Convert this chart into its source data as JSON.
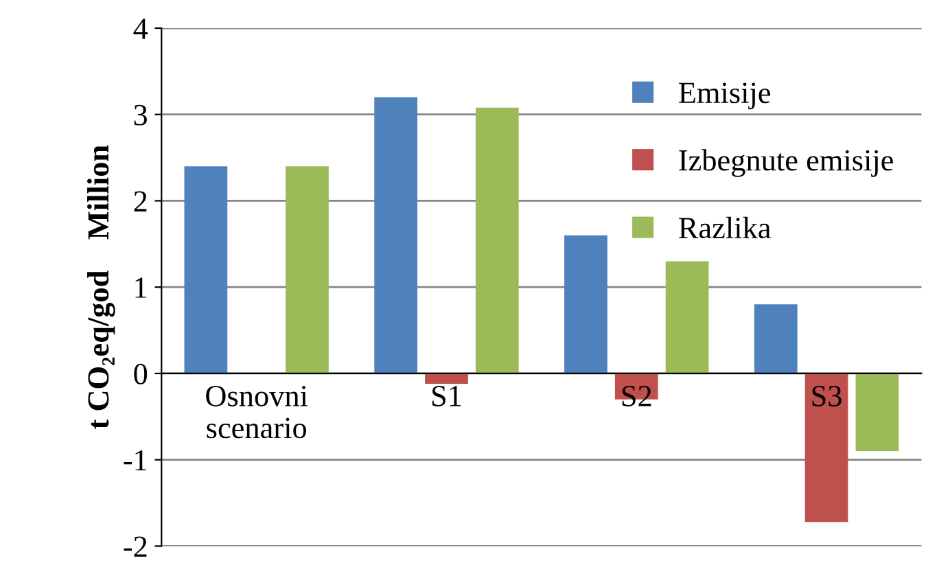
{
  "chart_data": {
    "type": "bar",
    "ylabel": "t CO₂eq/god    Million",
    "categories": [
      "Osnovni\nscenario",
      "S1",
      "S2",
      "S3"
    ],
    "series": [
      {
        "name": "Emisije",
        "color": "#4f81bd",
        "values": [
          2.4,
          3.2,
          1.6,
          0.8
        ]
      },
      {
        "name": "Izbegnute emisije",
        "color": "#c0504d",
        "values": [
          0,
          -0.12,
          -0.3,
          -1.72
        ]
      },
      {
        "name": "Razlika",
        "color": "#9bbb59",
        "values": [
          2.4,
          3.08,
          1.3,
          -0.9
        ]
      }
    ],
    "ylim": [
      -2,
      4
    ],
    "yticks": [
      -2,
      -1,
      0,
      1,
      2,
      3,
      4
    ],
    "grid": "y",
    "legend": "top right"
  }
}
